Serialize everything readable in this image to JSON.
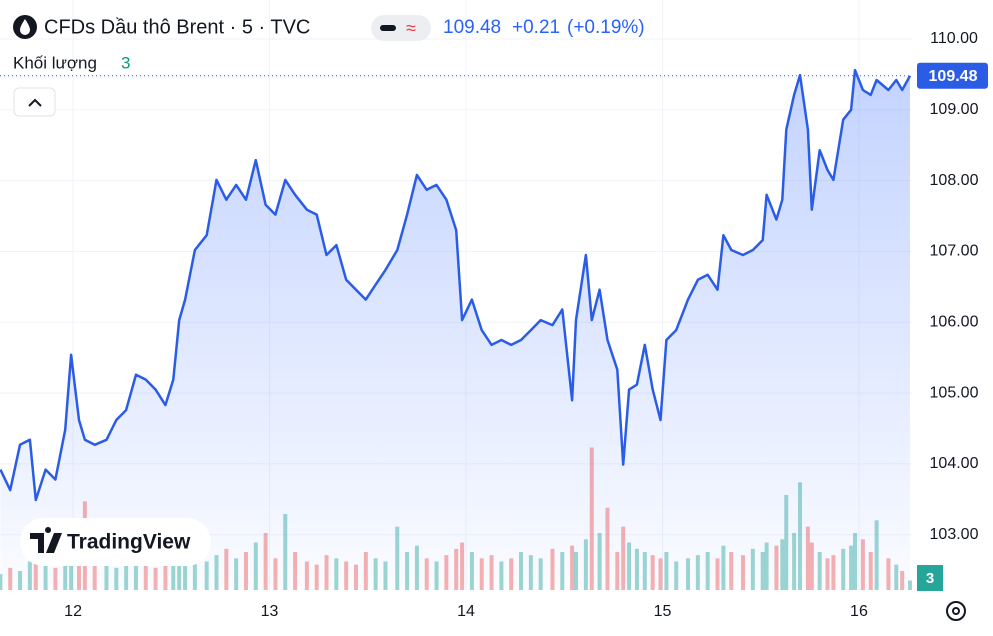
{
  "header": {
    "symbol": "CFDs Dầu thô Brent · 5 · TVC",
    "price": "109.48",
    "change": "+0.21",
    "change_pct": "(+0.19%)",
    "logo": "TradingView"
  },
  "chart_data": {
    "type": "area",
    "color": "#2b5ce6",
    "x": [
      11.63,
      11.68,
      11.73,
      11.78,
      11.81,
      11.86,
      11.91,
      11.96,
      11.99,
      12.03,
      12.06,
      12.11,
      12.17,
      12.22,
      12.27,
      12.32,
      12.37,
      12.42,
      12.47,
      12.51,
      12.54,
      12.57,
      12.62,
      12.68,
      12.73,
      12.78,
      12.83,
      12.88,
      12.93,
      12.98,
      13.03,
      13.08,
      13.13,
      13.19,
      13.24,
      13.29,
      13.34,
      13.39,
      13.44,
      13.49,
      13.54,
      13.59,
      13.65,
      13.7,
      13.75,
      13.8,
      13.85,
      13.9,
      13.95,
      13.98,
      14.03,
      14.08,
      14.13,
      14.18,
      14.23,
      14.28,
      14.33,
      14.38,
      14.44,
      14.49,
      14.54,
      14.56,
      14.61,
      14.64,
      14.68,
      14.72,
      14.77,
      14.8,
      14.83,
      14.87,
      14.91,
      14.95,
      14.99,
      15.02,
      15.07,
      15.13,
      15.18,
      15.23,
      15.28,
      15.31,
      15.35,
      15.41,
      15.46,
      15.51,
      15.53,
      15.58,
      15.61,
      15.63,
      15.67,
      15.7,
      15.74,
      15.76,
      15.8,
      15.84,
      15.87,
      15.92,
      15.96,
      15.98,
      16.02,
      16.06,
      16.09,
      16.15,
      16.19,
      16.22,
      16.26
    ],
    "values": [
      103.92,
      103.63,
      104.27,
      104.34,
      103.49,
      103.92,
      103.78,
      104.48,
      105.54,
      104.62,
      104.34,
      104.27,
      104.34,
      104.62,
      104.76,
      105.26,
      105.19,
      105.05,
      104.83,
      105.19,
      106.03,
      106.32,
      107.02,
      107.23,
      108.01,
      107.73,
      107.94,
      107.73,
      108.29,
      107.66,
      107.52,
      108.01,
      107.8,
      107.59,
      107.52,
      106.95,
      107.09,
      106.6,
      106.46,
      106.32,
      106.53,
      106.74,
      107.02,
      107.52,
      108.08,
      107.87,
      107.94,
      107.73,
      107.3,
      106.03,
      106.32,
      105.89,
      105.68,
      105.75,
      105.68,
      105.75,
      105.89,
      106.03,
      105.96,
      106.18,
      104.9,
      106.03,
      106.95,
      106.03,
      106.46,
      105.75,
      105.33,
      103.99,
      105.05,
      105.12,
      105.68,
      105.05,
      104.62,
      105.75,
      105.89,
      106.32,
      106.6,
      106.67,
      106.46,
      107.23,
      107.02,
      106.95,
      107.02,
      107.16,
      107.8,
      107.45,
      107.73,
      108.72,
      109.21,
      109.49,
      108.72,
      107.59,
      108.43,
      108.15,
      108.01,
      108.86,
      109.0,
      109.56,
      109.28,
      109.21,
      109.42,
      109.28,
      109.42,
      109.28,
      109.48
    ],
    "last_price": 109.48,
    "xlim": [
      11.628,
      16.27
    ],
    "xticks": [
      12,
      13,
      14,
      15,
      16
    ],
    "ylim": [
      102.22,
      110.55
    ],
    "yticks": [
      {
        "value": 103,
        "label": "103.00"
      },
      {
        "value": 104,
        "label": "104.00"
      },
      {
        "value": 105,
        "label": "105.00"
      },
      {
        "value": 106,
        "label": "106.00"
      },
      {
        "value": 107,
        "label": "107.00"
      },
      {
        "value": 108,
        "label": "108.00"
      },
      {
        "value": 109,
        "label": "109.00"
      },
      {
        "value": 110,
        "label": "110.00"
      }
    ],
    "grid": true,
    "volume": {
      "name": "Khối lượng",
      "vlim": [
        0,
        60
      ],
      "up_color": "#26a69a",
      "down_color": "#ef5350",
      "values": [
        5,
        7,
        6,
        9,
        12,
        8,
        7,
        10,
        15,
        12,
        28,
        9,
        8,
        7,
        10,
        12,
        8,
        7,
        9,
        11,
        14,
        10,
        12,
        9,
        11,
        13,
        10,
        12,
        15,
        18,
        10,
        24,
        12,
        9,
        8,
        11,
        10,
        9,
        8,
        12,
        10,
        9,
        20,
        12,
        14,
        10,
        9,
        11,
        13,
        15,
        12,
        10,
        11,
        9,
        10,
        12,
        11,
        10,
        13,
        12,
        14,
        12,
        16,
        45,
        18,
        26,
        12,
        20,
        15,
        13,
        12,
        11,
        10,
        12,
        9,
        10,
        11,
        12,
        10,
        14,
        12,
        11,
        13,
        12,
        15,
        14,
        16,
        30,
        18,
        34,
        20,
        15,
        12,
        10,
        11,
        13,
        14,
        18,
        16,
        12,
        22,
        10,
        8,
        6,
        3
      ]
    }
  }
}
